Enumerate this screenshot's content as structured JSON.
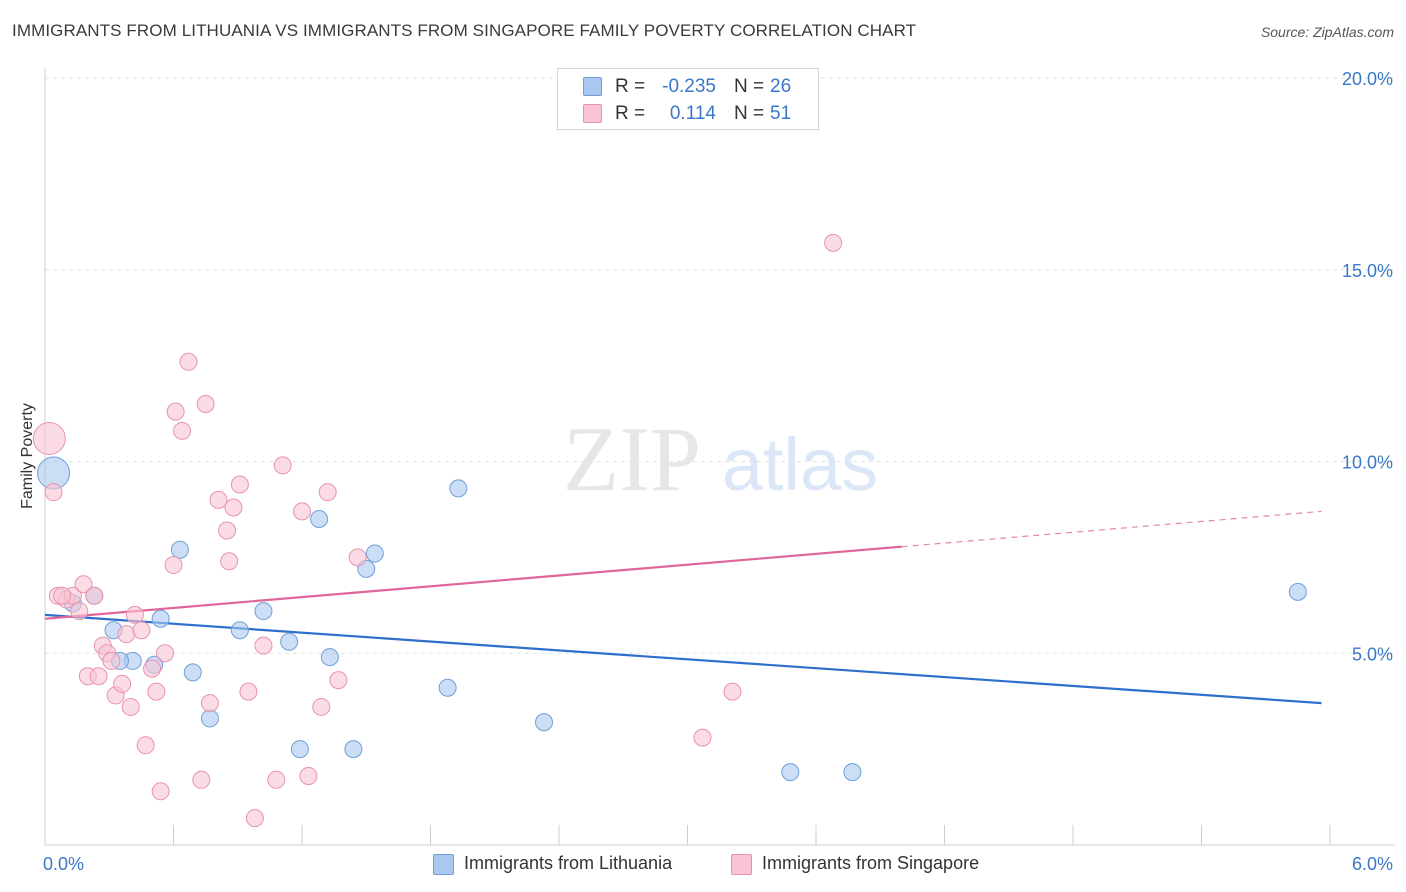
{
  "header": {
    "title": "IMMIGRANTS FROM LITHUANIA VS IMMIGRANTS FROM SINGAPORE FAMILY POVERTY CORRELATION CHART",
    "source": "Source: ZipAtlas.com"
  },
  "watermark": {
    "zip": "ZIP",
    "atlas": "atlas"
  },
  "stats": [
    {
      "r_label": "R =",
      "r_value": "-0.235",
      "n_label": "N =",
      "n_value": "26",
      "color": "#a9c8f0",
      "border": "#6f9fd8"
    },
    {
      "r_label": "R =",
      "r_value": "0.114",
      "n_label": "N =",
      "n_value": "51",
      "color": "#f9c4d4",
      "border": "#e893ae"
    }
  ],
  "legend": [
    {
      "label": "Immigrants from Lithuania",
      "color": "#a9c8f0",
      "border": "#6f9fd8"
    },
    {
      "label": "Immigrants from Singapore",
      "color": "#f9c4d4",
      "border": "#e893ae"
    }
  ],
  "chart_data": {
    "type": "scatter",
    "title": "IMMIGRANTS FROM LITHUANIA VS IMMIGRANTS FROM SINGAPORE FAMILY POVERTY CORRELATION CHART",
    "xlabel": "",
    "ylabel": "Family Poverty",
    "xlim": [
      0,
      6
    ],
    "ylim": [
      0,
      20
    ],
    "x_tick_labels": [
      "0.0%",
      "6.0%"
    ],
    "y_tick_labels": [
      "5.0%",
      "10.0%",
      "15.0%",
      "20.0%"
    ],
    "y_tick_values": [
      5,
      10,
      15,
      20
    ],
    "grid": true,
    "series": [
      {
        "name": "Immigrants from Lithuania",
        "color": "#a9c8f0",
        "stroke": "#6f9fd8",
        "line_color": "#2f6fcc",
        "trend": {
          "x": [
            0,
            5.96
          ],
          "y": [
            6.0,
            3.7
          ],
          "dashed_from": null
        },
        "points": [
          {
            "x": 0.04,
            "y": 9.7,
            "size": "large"
          },
          {
            "x": 0.13,
            "y": 6.3
          },
          {
            "x": 0.23,
            "y": 6.5
          },
          {
            "x": 0.32,
            "y": 5.6
          },
          {
            "x": 0.41,
            "y": 4.8
          },
          {
            "x": 0.51,
            "y": 4.7
          },
          {
            "x": 0.54,
            "y": 5.9
          },
          {
            "x": 0.63,
            "y": 7.7
          },
          {
            "x": 0.69,
            "y": 4.5
          },
          {
            "x": 0.77,
            "y": 3.3
          },
          {
            "x": 0.91,
            "y": 5.6
          },
          {
            "x": 1.02,
            "y": 6.1
          },
          {
            "x": 1.14,
            "y": 5.3
          },
          {
            "x": 1.19,
            "y": 2.5
          },
          {
            "x": 1.28,
            "y": 8.5
          },
          {
            "x": 1.33,
            "y": 4.9
          },
          {
            "x": 1.44,
            "y": 2.5
          },
          {
            "x": 1.5,
            "y": 7.2
          },
          {
            "x": 1.54,
            "y": 7.6
          },
          {
            "x": 1.88,
            "y": 4.1
          },
          {
            "x": 1.93,
            "y": 9.3
          },
          {
            "x": 2.33,
            "y": 3.2
          },
          {
            "x": 3.48,
            "y": 1.9
          },
          {
            "x": 3.77,
            "y": 1.9
          },
          {
            "x": 5.85,
            "y": 6.6
          },
          {
            "x": 0.35,
            "y": 4.8
          }
        ]
      },
      {
        "name": "Immigrants from Singapore",
        "color": "#f9c4d4",
        "stroke": "#e893ae",
        "line_color": "#e0659a",
        "trend": {
          "x": [
            0,
            5.96
          ],
          "y": [
            5.9,
            8.7
          ],
          "dashed_from": 4.0
        },
        "points": [
          {
            "x": 0.02,
            "y": 10.6,
            "size": "large"
          },
          {
            "x": 0.04,
            "y": 9.2
          },
          {
            "x": 0.06,
            "y": 6.5
          },
          {
            "x": 0.1,
            "y": 6.4
          },
          {
            "x": 0.13,
            "y": 6.5
          },
          {
            "x": 0.16,
            "y": 6.1
          },
          {
            "x": 0.18,
            "y": 6.8
          },
          {
            "x": 0.2,
            "y": 4.4
          },
          {
            "x": 0.23,
            "y": 6.5
          },
          {
            "x": 0.25,
            "y": 4.4
          },
          {
            "x": 0.27,
            "y": 5.2
          },
          {
            "x": 0.29,
            "y": 5.0
          },
          {
            "x": 0.31,
            "y": 4.8
          },
          {
            "x": 0.33,
            "y": 3.9
          },
          {
            "x": 0.36,
            "y": 4.2
          },
          {
            "x": 0.38,
            "y": 5.5
          },
          {
            "x": 0.4,
            "y": 3.6
          },
          {
            "x": 0.42,
            "y": 6.0
          },
          {
            "x": 0.45,
            "y": 5.6
          },
          {
            "x": 0.47,
            "y": 2.6
          },
          {
            "x": 0.5,
            "y": 4.6
          },
          {
            "x": 0.52,
            "y": 4.0
          },
          {
            "x": 0.54,
            "y": 1.4
          },
          {
            "x": 0.56,
            "y": 5.0
          },
          {
            "x": 0.6,
            "y": 7.3
          },
          {
            "x": 0.61,
            "y": 11.3
          },
          {
            "x": 0.64,
            "y": 10.8
          },
          {
            "x": 0.67,
            "y": 12.6
          },
          {
            "x": 0.73,
            "y": 1.7
          },
          {
            "x": 0.75,
            "y": 11.5
          },
          {
            "x": 0.77,
            "y": 3.7
          },
          {
            "x": 0.81,
            "y": 9.0
          },
          {
            "x": 0.85,
            "y": 8.2
          },
          {
            "x": 0.86,
            "y": 7.4
          },
          {
            "x": 0.88,
            "y": 8.8
          },
          {
            "x": 0.91,
            "y": 9.4
          },
          {
            "x": 0.95,
            "y": 4.0
          },
          {
            "x": 0.98,
            "y": 0.7
          },
          {
            "x": 1.02,
            "y": 5.2
          },
          {
            "x": 1.08,
            "y": 1.7
          },
          {
            "x": 1.11,
            "y": 9.9
          },
          {
            "x": 1.2,
            "y": 8.7
          },
          {
            "x": 1.23,
            "y": 1.8
          },
          {
            "x": 1.29,
            "y": 3.6
          },
          {
            "x": 1.32,
            "y": 9.2
          },
          {
            "x": 1.37,
            "y": 4.3
          },
          {
            "x": 1.46,
            "y": 7.5
          },
          {
            "x": 3.07,
            "y": 2.8
          },
          {
            "x": 3.21,
            "y": 4.0
          },
          {
            "x": 3.68,
            "y": 15.7
          },
          {
            "x": 0.08,
            "y": 6.5
          }
        ]
      }
    ]
  }
}
